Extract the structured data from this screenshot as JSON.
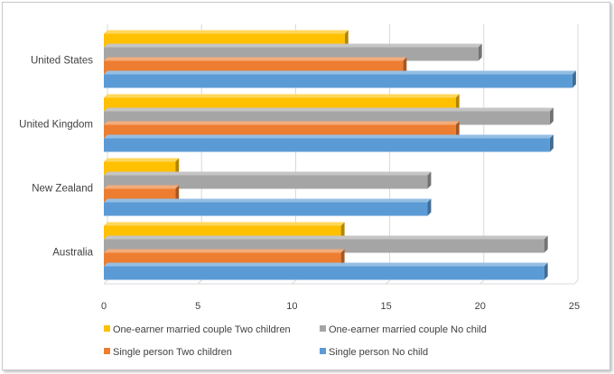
{
  "chart_data": {
    "type": "bar",
    "orientation": "horizontal",
    "title": "",
    "xlabel": "",
    "ylabel": "",
    "categories": [
      "Australia",
      "New Zealand",
      "United Kingdom",
      "United States"
    ],
    "xlim": [
      0,
      25
    ],
    "ticks": [
      0,
      5,
      10,
      15,
      20,
      25
    ],
    "grid": true,
    "legend_position": "bottom",
    "series": [
      {
        "name": "One-earner married couple Two children",
        "color": "#ffc000",
        "values": [
          12.6,
          3.8,
          18.7,
          12.8
        ]
      },
      {
        "name": "One-earner married couple No child",
        "color": "#a5a5a5",
        "values": [
          23.4,
          17.2,
          23.7,
          19.9
        ]
      },
      {
        "name": "Single person Two children",
        "color": "#ed7d31",
        "values": [
          12.6,
          3.8,
          18.7,
          15.9
        ]
      },
      {
        "name": "Single person No child",
        "color": "#5b9bd5",
        "values": [
          23.4,
          17.2,
          23.7,
          24.9
        ]
      }
    ]
  }
}
